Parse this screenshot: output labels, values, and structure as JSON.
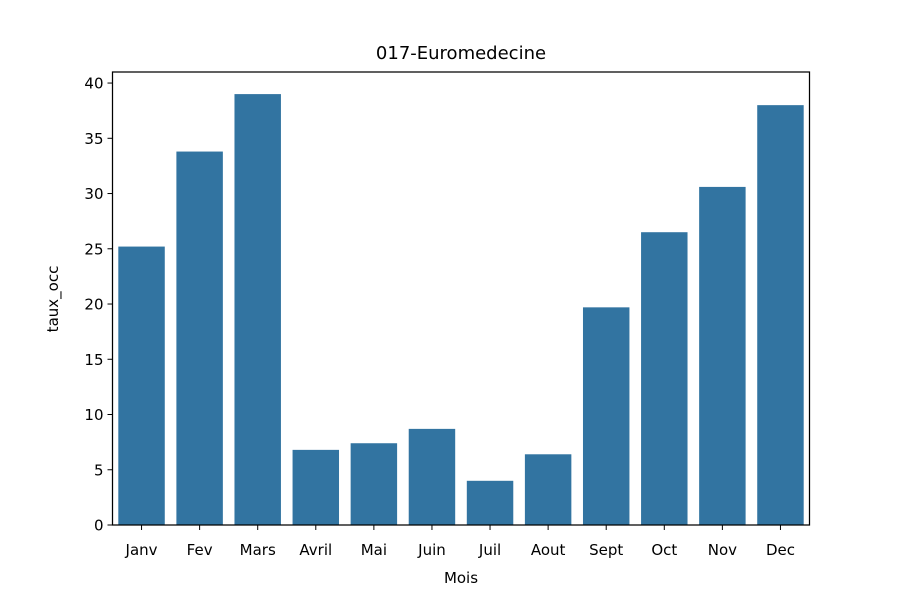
{
  "chart_data": {
    "type": "bar",
    "title": "017-Euromedecine",
    "xlabel": "Mois",
    "ylabel": "taux_occ",
    "categories": [
      "Janv",
      "Fev",
      "Mars",
      "Avril",
      "Mai",
      "Juin",
      "Juil",
      "Aout",
      "Sept",
      "Oct",
      "Nov",
      "Dec"
    ],
    "values": [
      25.2,
      33.8,
      39.0,
      6.8,
      7.4,
      8.7,
      4.0,
      6.4,
      19.7,
      26.5,
      30.6,
      38.0
    ],
    "ylim": [
      0,
      41
    ],
    "yticks": [
      0,
      5,
      10,
      15,
      20,
      25,
      30,
      35,
      40
    ],
    "bar_color": "#3274a1",
    "grid": false,
    "legend": "none"
  }
}
